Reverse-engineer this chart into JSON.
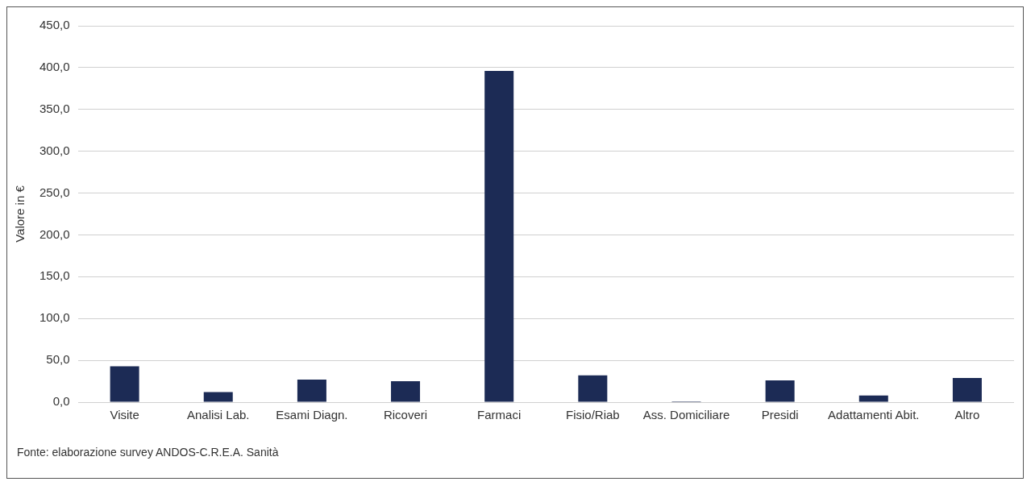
{
  "chart_data": {
    "type": "bar",
    "ylabel": "Valore in €",
    "categories": [
      "Visite",
      "Analisi Lab.",
      "Esami Diagn.",
      "Ricoveri",
      "Farmaci",
      "Fisio/Riab",
      "Ass. Domiciliare",
      "Presidi",
      "Adattamenti Abit.",
      "Altro"
    ],
    "values": [
      43,
      12,
      27,
      25,
      396,
      32,
      1,
      26,
      8,
      29
    ],
    "color": "#1c2b55",
    "ylim": [
      0,
      450
    ],
    "yticks": [
      {
        "value": 0,
        "label": "0,0"
      },
      {
        "value": 50,
        "label": "50,0"
      },
      {
        "value": 100,
        "label": "100,0"
      },
      {
        "value": 150,
        "label": "150,0"
      },
      {
        "value": 200,
        "label": "200,0"
      },
      {
        "value": 250,
        "label": "250,0"
      },
      {
        "value": 300,
        "label": "300,0"
      },
      {
        "value": 350,
        "label": "350,0"
      },
      {
        "value": 400,
        "label": "400,0"
      },
      {
        "value": 450,
        "label": "450,0"
      }
    ],
    "grid": "y",
    "annotations": [
      "Fonte: elaborazione survey ANDOS-C.R.E.A. Sanità"
    ]
  }
}
